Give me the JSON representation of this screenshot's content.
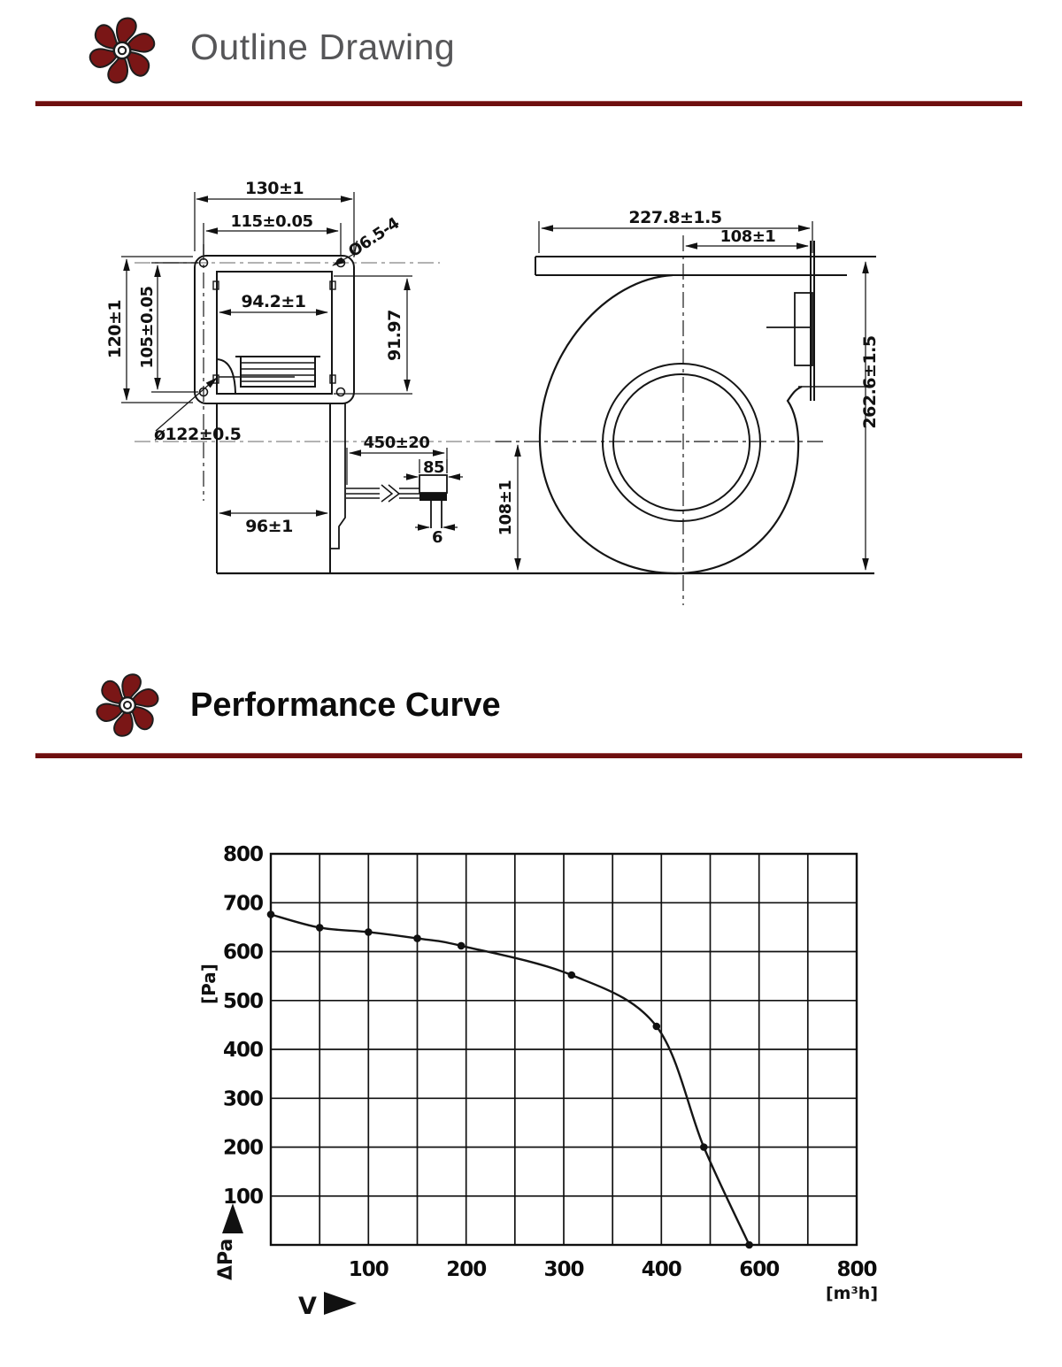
{
  "page": {
    "background": "#ffffff",
    "rule_color": "#6e0f0f",
    "logo_color": "#7a1616"
  },
  "sections": [
    {
      "id": "outline",
      "title": "Outline Drawing"
    },
    {
      "id": "performance",
      "title": "Performance Curve"
    }
  ],
  "drawing": {
    "dims": {
      "flange_width": "130±1",
      "hole_spacing_h": "115±0.05",
      "hole_size": "Ø6.5-4",
      "inner_width": "94.2±1",
      "inner_height": "91.97",
      "flange_height": "120±1",
      "hole_spacing_v": "105±0.05",
      "inlet_diameter": "ø122±0.5",
      "cable_length": "450±20",
      "connector_width": "85",
      "pin_width": "6",
      "body_width": "96±1",
      "center_to_base": "108±1",
      "scroll_width": "227.8±1.5",
      "outlet_to_center": "108±1",
      "scroll_height": "262.6±1.5"
    }
  },
  "chart_data": {
    "type": "line",
    "title": "Performance Curve",
    "xlabel": "V",
    "ylabel": "ΔPa",
    "x_unit": "[m³h]",
    "y_unit": "[Pa]",
    "grid": "on",
    "x_gridline_values": [
      0,
      50,
      100,
      150,
      200,
      250,
      300,
      350,
      400,
      500,
      600,
      700,
      800
    ],
    "x_tick_labels": [
      100,
      200,
      300,
      400,
      600,
      800
    ],
    "y_gridline_values": [
      0,
      100,
      200,
      300,
      400,
      500,
      600,
      700,
      800
    ],
    "y_tick_labels": [
      100,
      200,
      300,
      400,
      500,
      600,
      700,
      800
    ],
    "xlim": [
      0,
      800
    ],
    "ylim": [
      0,
      800
    ],
    "axis_note": "x axis divisions: 50 m³/h per cell up to 400, then 100 m³/h per cell",
    "series": [
      {
        "name": "static-pressure-vs-airflow",
        "points": [
          [
            0,
            676
          ],
          [
            50,
            649
          ],
          [
            100,
            640
          ],
          [
            150,
            627
          ],
          [
            195,
            612
          ],
          [
            308,
            552
          ],
          [
            395,
            447
          ],
          [
            487,
            200
          ],
          [
            580,
            0
          ]
        ]
      }
    ]
  }
}
